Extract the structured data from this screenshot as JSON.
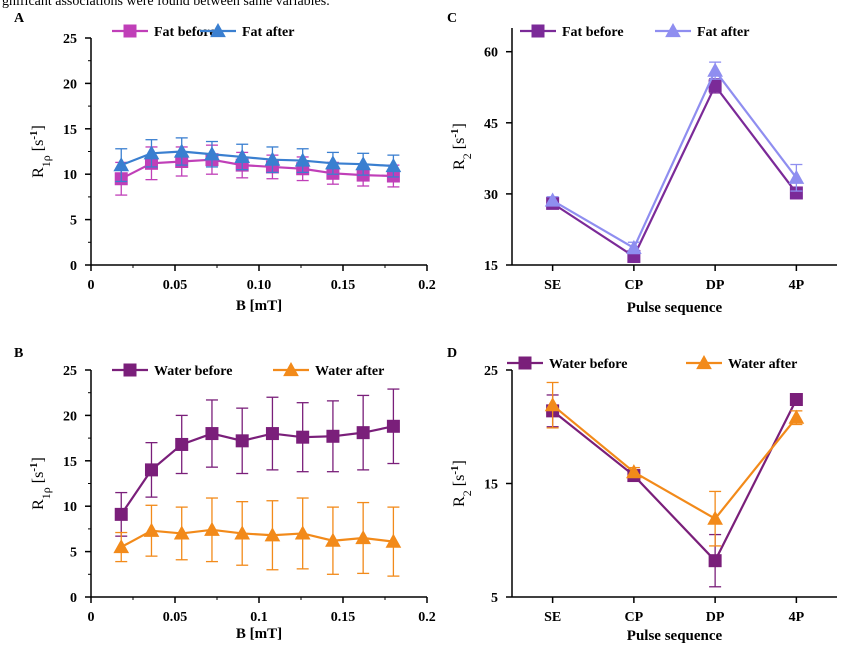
{
  "caption": "gnificant associations were found between same variables.",
  "chart_data": [
    {
      "id": "A",
      "panel_label": "A",
      "type": "line",
      "xlabel": "B [mT]",
      "ylabel_main": "R",
      "ylabel_sub": "1ρ",
      "ylabel_unit_pre": " [s",
      "ylabel_unit_sup": "-1",
      "ylabel_unit_post": "]",
      "xlim": [
        0,
        0.2
      ],
      "ylim": [
        0,
        25
      ],
      "xticks": [
        0,
        0.05,
        0.1,
        0.15,
        0.2
      ],
      "xtick_labels": [
        "0",
        "0.05",
        "0.10",
        "0.15",
        "0.2"
      ],
      "yticks": [
        0,
        5,
        10,
        15,
        20,
        25
      ],
      "ytick_labels": [
        "0",
        "5",
        "10",
        "15",
        "20",
        "25"
      ],
      "x": [
        0.018,
        0.036,
        0.054,
        0.072,
        0.09,
        0.108,
        0.126,
        0.144,
        0.162,
        0.18
      ],
      "legend_position": "top",
      "series": [
        {
          "name": "Fat before",
          "marker": "square",
          "color": "#c03fb8",
          "values": [
            9.5,
            11.2,
            11.4,
            11.6,
            11.0,
            10.8,
            10.6,
            10.1,
            9.9,
            9.8
          ],
          "err": [
            1.8,
            1.8,
            1.6,
            1.6,
            1.4,
            1.3,
            1.3,
            1.2,
            1.2,
            1.2
          ]
        },
        {
          "name": "Fat after",
          "marker": "triangle",
          "color": "#3a7fd0",
          "values": [
            11.0,
            12.3,
            12.5,
            12.2,
            11.9,
            11.6,
            11.5,
            11.2,
            11.1,
            10.9
          ],
          "err": [
            1.8,
            1.5,
            1.5,
            1.4,
            1.4,
            1.4,
            1.3,
            1.2,
            1.2,
            1.2
          ]
        }
      ]
    },
    {
      "id": "B",
      "panel_label": "B",
      "type": "line",
      "xlabel": "B [mT]",
      "ylabel_main": "R",
      "ylabel_sub": "1ρ",
      "ylabel_unit_pre": " [s",
      "ylabel_unit_sup": "-1",
      "ylabel_unit_post": "]",
      "xlim": [
        0,
        0.2
      ],
      "ylim": [
        0,
        25
      ],
      "xticks": [
        0,
        0.05,
        0.1,
        0.15,
        0.2
      ],
      "xtick_labels": [
        "0",
        "0.05",
        "0.1",
        "0.15",
        "0.2"
      ],
      "yticks": [
        0,
        5,
        10,
        15,
        20,
        25
      ],
      "ytick_labels": [
        "0",
        "5",
        "10",
        "15",
        "20",
        "25"
      ],
      "x": [
        0.018,
        0.036,
        0.054,
        0.072,
        0.09,
        0.108,
        0.126,
        0.144,
        0.162,
        0.18
      ],
      "legend_position": "top",
      "series": [
        {
          "name": "Water before",
          "marker": "square",
          "color": "#7a1f7a",
          "values": [
            9.1,
            14.0,
            16.8,
            18.0,
            17.2,
            18.0,
            17.6,
            17.7,
            18.1,
            18.8
          ],
          "err": [
            2.4,
            3.0,
            3.2,
            3.7,
            3.6,
            4.0,
            3.8,
            3.9,
            4.1,
            4.1
          ]
        },
        {
          "name": "Water after",
          "marker": "triangle",
          "color": "#f28a1a",
          "values": [
            5.5,
            7.3,
            7.0,
            7.4,
            7.0,
            6.8,
            7.0,
            6.2,
            6.5,
            6.1
          ],
          "err": [
            1.6,
            2.8,
            2.9,
            3.5,
            3.5,
            3.8,
            3.9,
            3.7,
            3.9,
            3.8
          ]
        }
      ]
    },
    {
      "id": "C",
      "panel_label": "C",
      "type": "line",
      "xlabel": "Pulse sequence",
      "ylabel_main": "R",
      "ylabel_sub": "2",
      "ylabel_unit_pre": " [s",
      "ylabel_unit_sup": "-1",
      "ylabel_unit_post": "]",
      "categories": [
        "SE",
        "CP",
        "DP",
        "4P"
      ],
      "ylim": [
        15,
        65
      ],
      "yticks": [
        15,
        30,
        45,
        60
      ],
      "ytick_labels": [
        "15",
        "30",
        "45",
        "60"
      ],
      "legend_position": "top",
      "series": [
        {
          "name": "Fat before",
          "marker": "square",
          "color": "#7b2a98",
          "values": [
            28.0,
            16.8,
            52.8,
            30.2
          ],
          "err": [
            1.0,
            1.2,
            1.5,
            1.2
          ]
        },
        {
          "name": "Fat after",
          "marker": "triangle",
          "color": "#8f8ef0",
          "values": [
            28.6,
            18.6,
            56.0,
            33.4
          ],
          "err": [
            0.8,
            1.2,
            1.8,
            2.8
          ]
        }
      ]
    },
    {
      "id": "D",
      "panel_label": "D",
      "type": "line",
      "xlabel": "Pulse sequence",
      "ylabel_main": "R",
      "ylabel_sub": "2",
      "ylabel_unit_pre": " [s",
      "ylabel_unit_sup": "-1",
      "ylabel_unit_post": "]",
      "categories": [
        "SE",
        "CP",
        "DP",
        "4P"
      ],
      "ylim": [
        5,
        25
      ],
      "yticks": [
        5,
        15,
        25
      ],
      "ytick_labels": [
        "5",
        "15",
        "25"
      ],
      "legend_position": "top",
      "series": [
        {
          "name": "Water before",
          "marker": "square",
          "color": "#7a1f7a",
          "values": [
            21.4,
            15.7,
            8.2,
            22.4
          ],
          "err": [
            1.4,
            0.4,
            2.3,
            0.4
          ]
        },
        {
          "name": "Water after",
          "marker": "triangle",
          "color": "#f28a1a",
          "values": [
            21.9,
            16.0,
            11.9,
            20.8
          ],
          "err": [
            2.0,
            0.4,
            2.4,
            0.6
          ]
        }
      ]
    }
  ]
}
